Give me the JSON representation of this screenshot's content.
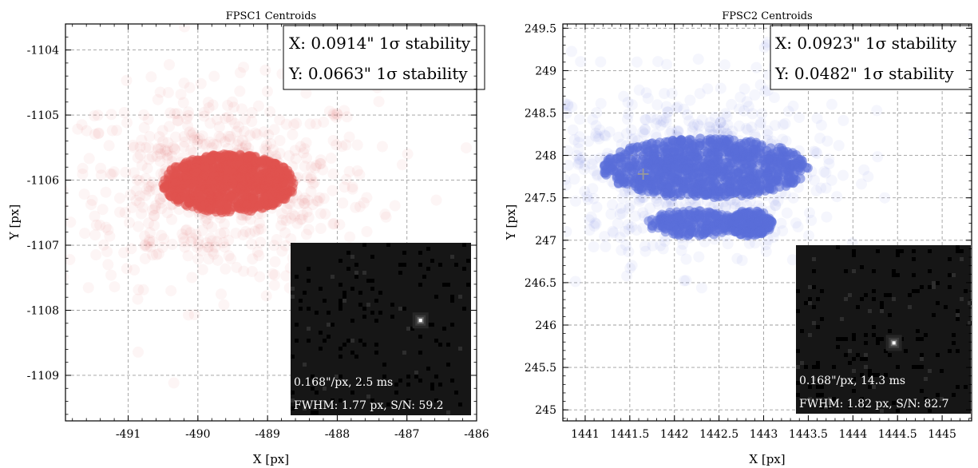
{
  "chart_data": [
    {
      "type": "scatter",
      "title": "FPSC1 Centroids",
      "xlabel": "X [px]",
      "ylabel": "Y [px]",
      "xlim": [
        -491.9,
        -486.0
      ],
      "ylim": [
        -1109.7,
        -1103.6
      ],
      "xticks": [
        -491,
        -490,
        -489,
        -488,
        -487,
        -486
      ],
      "yticks": [
        -1109,
        -1108,
        -1107,
        -1106,
        -1105,
        -1104
      ],
      "grid": true,
      "color": "#e0524f",
      "cluster": {
        "center": [
          -489.7,
          -1106.1
        ],
        "core_x": [
          -490.5,
          -488.6
        ],
        "core_y": [
          -1106.5,
          -1105.6
        ],
        "halo_x": [
          -492.0,
          -487.5
        ],
        "halo_y": [
          -1107.4,
          -1104.4
        ]
      },
      "stats_box": [
        "X: 0.0914\" 1σ stability",
        "Y: 0.0663\" 1σ stability"
      ],
      "inset": {
        "lines": [
          "0.168\"/px, 2.5 ms",
          "FWHM: 1.77 px, S/N: 59.2"
        ],
        "star_position": [
          0.72,
          0.45
        ]
      }
    },
    {
      "type": "scatter",
      "title": "FPSC2 Centroids",
      "xlabel": "X [px]",
      "ylabel": "Y [px]",
      "xlim": [
        1440.75,
        1445.33
      ],
      "ylim": [
        244.87,
        249.55
      ],
      "xticks": [
        1441,
        1441.5,
        1442,
        1442.5,
        1443,
        1443.5,
        1444,
        1444.5,
        1445
      ],
      "yticks": [
        245,
        245.5,
        246,
        246.5,
        247,
        247.5,
        248,
        248.5,
        249,
        249.5
      ],
      "grid": true,
      "color": "#5a6ed9",
      "cluster": {
        "center": [
          1442.2,
          247.85
        ],
        "core_x": [
          1441.2,
          1443.5
        ],
        "core_y": [
          247.5,
          248.2
        ],
        "halo_x": [
          1440.8,
          1444.1
        ],
        "halo_y": [
          246.8,
          248.8
        ],
        "lobes": [
          {
            "x": [
              1441.7,
              1442.7
            ],
            "y": [
              247.05,
              247.35
            ]
          },
          {
            "x": [
              1442.6,
              1443.1
            ],
            "y": [
              247.05,
              247.35
            ]
          }
        ]
      },
      "marker": {
        "label": "+",
        "position": [
          1441.65,
          247.78
        ]
      },
      "stats_box": [
        "X: 0.0923\" 1σ stability",
        "Y: 0.0482\" 1σ stability"
      ],
      "inset": {
        "lines": [
          "0.168\"/px, 14.3 ms",
          "FWHM: 1.82 px, S/N: 82.7"
        ],
        "star_position": [
          0.56,
          0.58
        ]
      }
    }
  ]
}
